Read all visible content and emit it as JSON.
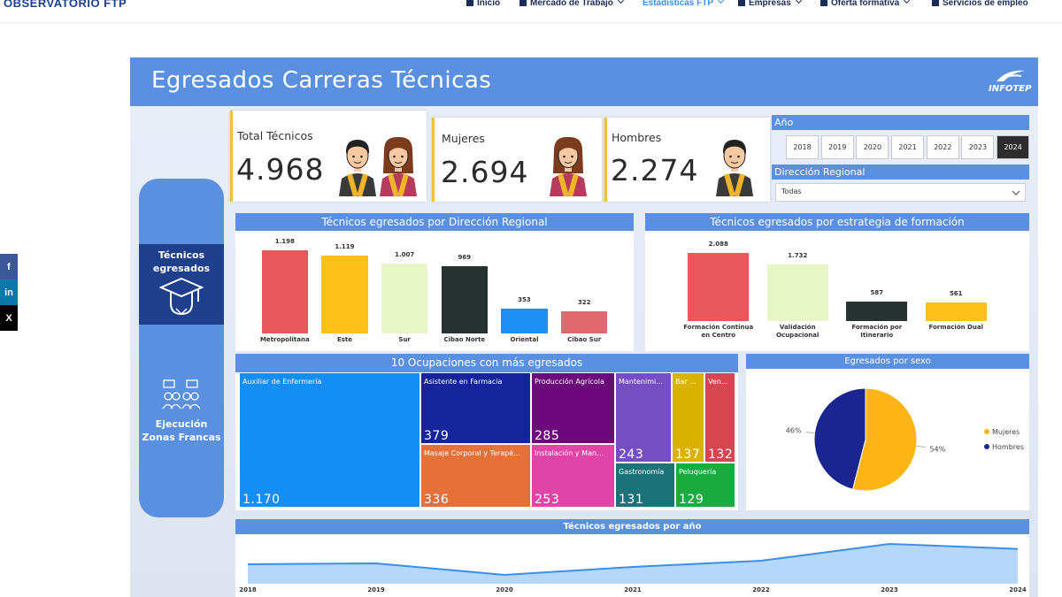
{
  "nav": {
    "brand": "OBSERVATORIO FTP",
    "items": [
      "Inicio",
      "Mercado de Trabajo",
      "Estadísticas FTP",
      "Empresas",
      "Oferta formativa",
      "Servicios de empleo"
    ]
  },
  "social": [
    "f",
    "in",
    "X"
  ],
  "dashboard": {
    "title": "Egresados Carreras Técnicas",
    "logo": "INFOTEP",
    "side_nav": [
      "Técnicos egresados",
      "Ejecución Zonas Francas"
    ],
    "kpis": [
      {
        "label": "Total Técnicos",
        "value": "4.968"
      },
      {
        "label": "Mujeres",
        "value": "2.694"
      },
      {
        "label": "Hombres",
        "value": "2.274"
      }
    ],
    "filters": {
      "year_label": "Año",
      "years": [
        "2018",
        "2019",
        "2020",
        "2021",
        "2022",
        "2023",
        "2024"
      ],
      "region_label": "Dirección Regional",
      "region_value": "Todas"
    },
    "charts": [
      {
        "type": "bar",
        "title": "Técnicos egresados por Dirección Regional",
        "categories": [
          "Metropolitana",
          "Este",
          "Sur",
          "Cibao Norte",
          "Oriental",
          "Cibao Sur"
        ],
        "values": [
          1198,
          1119,
          1007,
          969,
          353,
          322
        ],
        "value_labels": [
          "1.198",
          "1.119",
          "1.007",
          "969",
          "353",
          "322"
        ],
        "colors": [
          "#e8575a",
          "#fcc016",
          "#e8f5c4",
          "#263131",
          "#1e8ff5",
          "#e0696f"
        ]
      },
      {
        "type": "bar",
        "title": "Técnicos egresados por estrategia de formación",
        "categories": [
          "Formación Continua en Centro",
          "Validación Ocupacional",
          "Formación por Itinerario",
          "Formación Dual"
        ],
        "values": [
          2088,
          1732,
          587,
          561
        ],
        "value_labels": [
          "2.088",
          "1.732",
          "587",
          "561"
        ],
        "colors": [
          "#e8575a",
          "#e8f5c4",
          "#263131",
          "#fcc016"
        ]
      },
      {
        "type": "treemap",
        "title": "10 Ocupaciones con más egresados",
        "categories": [
          "Auxiliar de Enfermería",
          "Asistente en Farmacia",
          "Producción Agrícola",
          "Mantenimi...",
          "Bar ...",
          "Ven...",
          "Masaje Corporal y Terapé...",
          "Instalación y Man...",
          "Gastronomía",
          "Peluquería"
        ],
        "values": [
          1170,
          379,
          285,
          243,
          137,
          132,
          336,
          253,
          131,
          129
        ],
        "value_labels": [
          "1.170",
          "379",
          "285",
          "243",
          "137",
          "132",
          "336",
          "253",
          "131",
          "129"
        ],
        "colors": [
          "#148df5",
          "#14249a",
          "#6c0a7c",
          "#744ec2",
          "#d9b300",
          "#d64550",
          "#e5703a",
          "#e044a7",
          "#1b7278",
          "#1aab40"
        ]
      },
      {
        "type": "pie",
        "title": "Egresados por sexo",
        "categories": [
          "Mujeres",
          "Hombres"
        ],
        "values": [
          54,
          46
        ],
        "value_labels": [
          "54%",
          "46%"
        ],
        "colors": [
          "#fdb515",
          "#1a2590"
        ]
      },
      {
        "type": "line",
        "title": "Técnicos egresados por año",
        "x": [
          "2018",
          "2019",
          "2020",
          "2021",
          "2022",
          "2023",
          "2024"
        ],
        "values": [
          4100,
          4150,
          3500,
          3950,
          4300,
          5250,
          4968
        ],
        "ylim": [
          3000,
          5500
        ],
        "color": "#3b8fe8"
      }
    ]
  }
}
